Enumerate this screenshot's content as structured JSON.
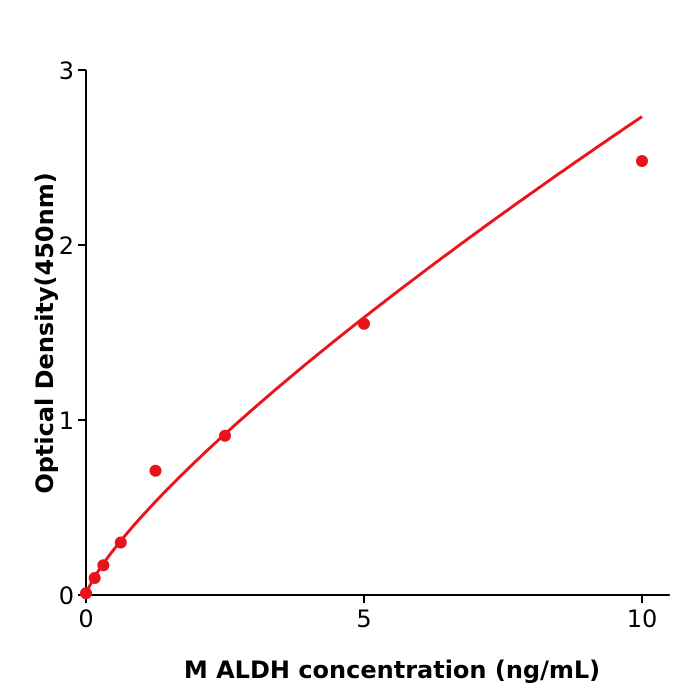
{
  "chart_data": {
    "type": "scatter",
    "title": "",
    "xlabel": "M  ALDH concentration (ng/mL)",
    "ylabel": "Optical Density(450nm)",
    "xlim": [
      0,
      10.5
    ],
    "ylim": [
      0,
      3
    ],
    "xticks": [
      "0",
      "5",
      "10"
    ],
    "yticks": [
      "0",
      "1",
      "2",
      "3"
    ],
    "grid": false,
    "color": "#e8141a",
    "points": {
      "x": [
        0,
        0.156,
        0.3125,
        0.625,
        1.25,
        2.5,
        5,
        10
      ],
      "y": [
        0.01,
        0.097,
        0.17,
        0.3,
        0.71,
        0.91,
        1.55,
        2.48
      ]
    },
    "fit_curve": true
  }
}
